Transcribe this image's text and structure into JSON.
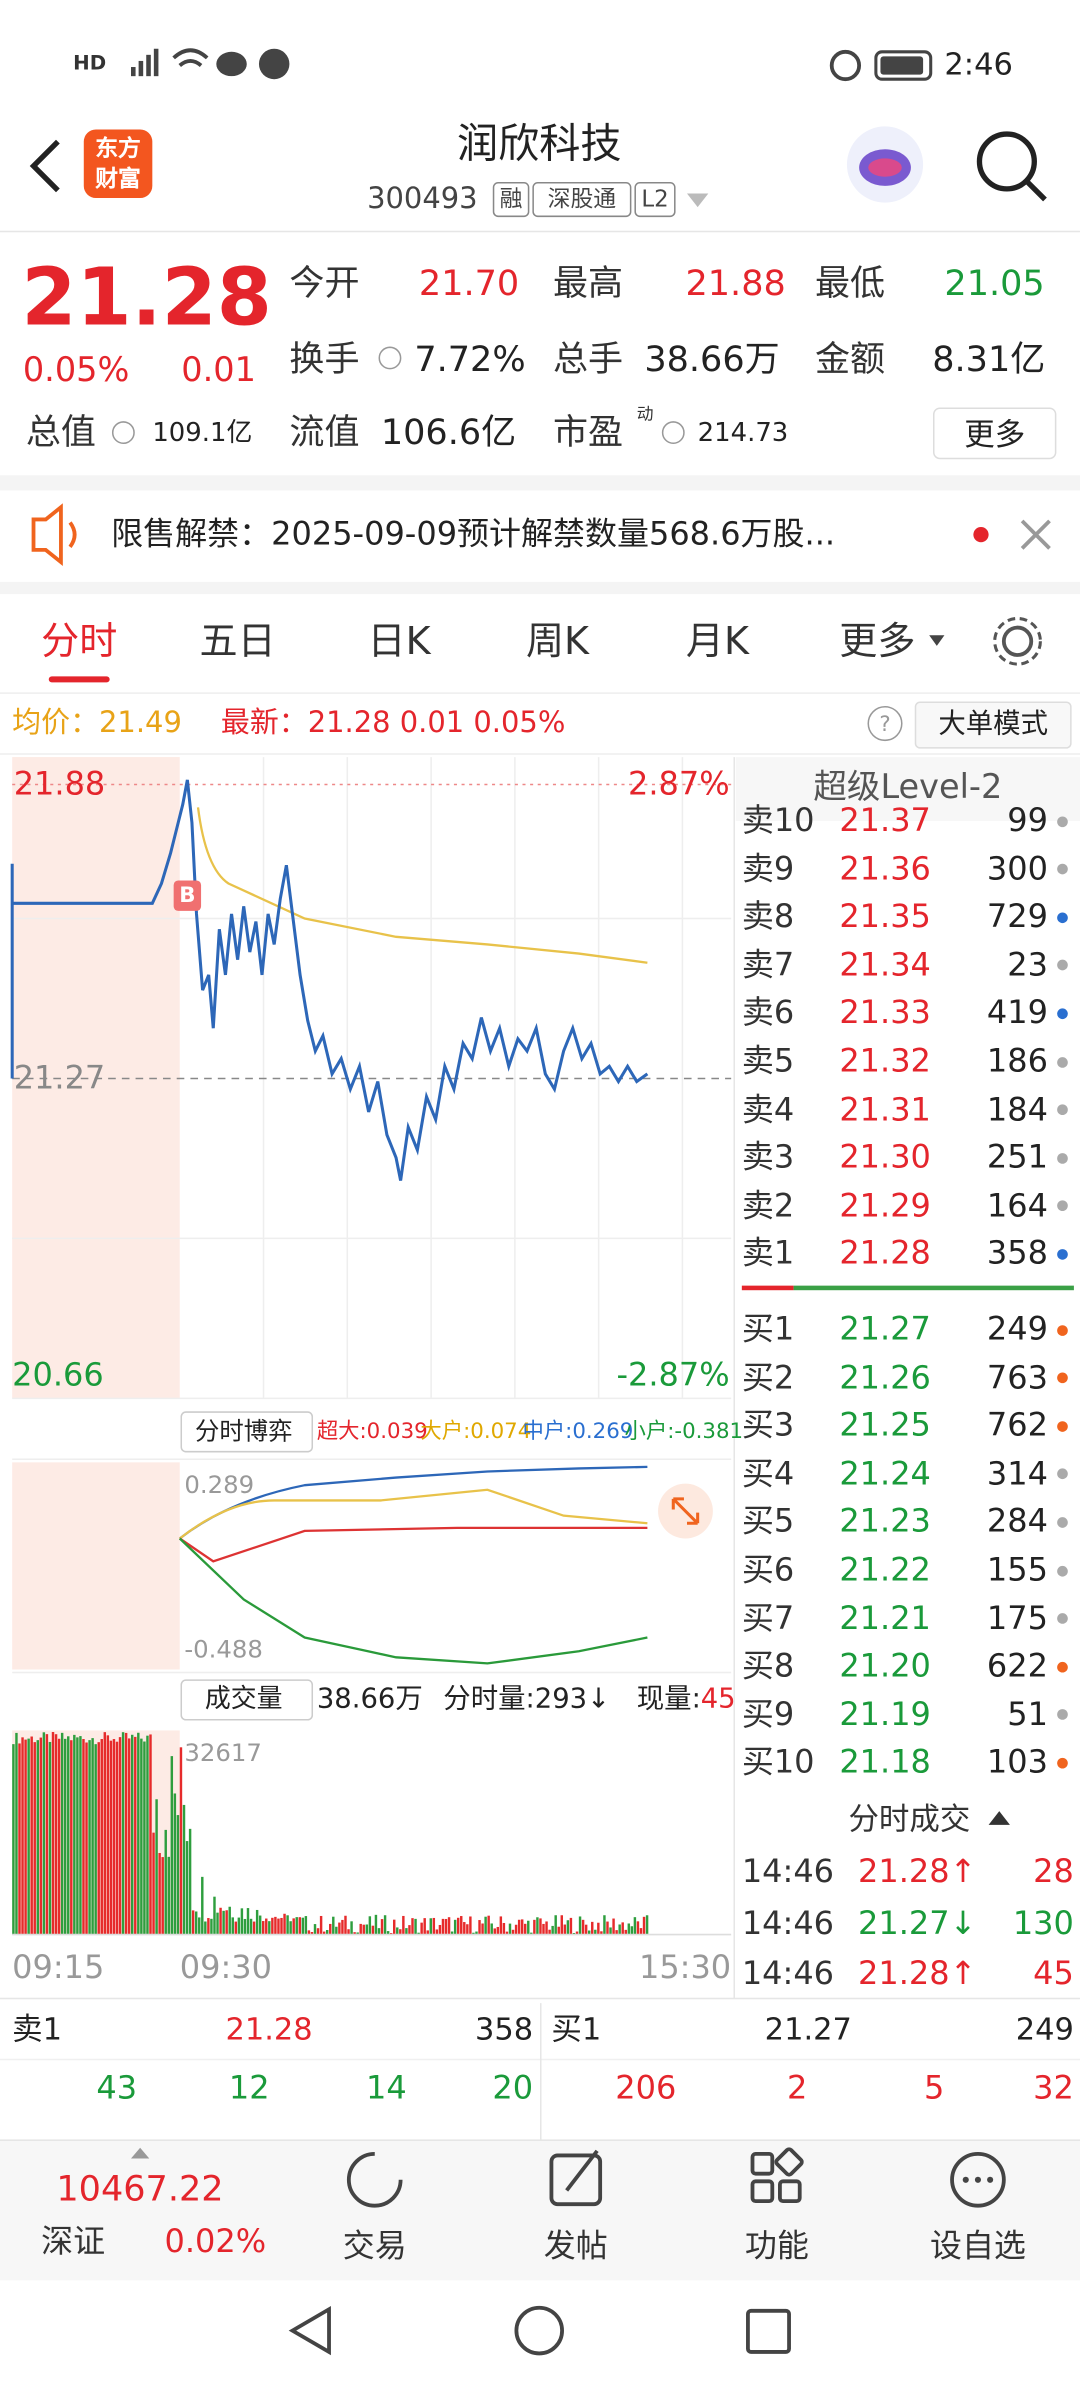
{
  "status_bar": {
    "network": "HD",
    "time": "2:46"
  },
  "header": {
    "logo": [
      "东方",
      "财富"
    ],
    "title": "润欣科技",
    "code": "300493",
    "badges": [
      "融",
      "深股通",
      "L2"
    ]
  },
  "quote": {
    "price": "21.28",
    "change_pct": "0.05%",
    "change": "0.01",
    "open": {
      "label": "今开",
      "value": "21.70"
    },
    "high": {
      "label": "最高",
      "value": "21.88"
    },
    "low": {
      "label": "最低",
      "value": "21.05"
    },
    "turnover": {
      "label": "换手",
      "value": "7.72%"
    },
    "volume": {
      "label": "总手",
      "value": "38.66万"
    },
    "amount": {
      "label": "金额",
      "value": "8.31亿"
    },
    "market_cap": {
      "label": "总值",
      "value": "109.1亿"
    },
    "float_cap": {
      "label": "流值",
      "value": "106.6亿"
    },
    "pe": {
      "label": "市盈",
      "tag": "动",
      "value": "214.73"
    },
    "more": "更多"
  },
  "notice": {
    "text": "限售解禁：2025-09-09预计解禁数量568.6万股..."
  },
  "tabs": [
    "分时",
    "五日",
    "日K",
    "周K",
    "月K",
    "更多"
  ],
  "intraday": {
    "avg": "均价：21.49",
    "latest": "最新：21.28  0.01  0.05%",
    "mode_button": "大单模式",
    "axis_left": [
      "21.88",
      "21.27",
      "20.66"
    ],
    "axis_right": [
      "2.87%",
      "-2.87%"
    ],
    "marker": "B"
  },
  "level2": {
    "title": "超级Level-2",
    "asks": [
      {
        "label": "卖10",
        "price": "21.37",
        "volume": "99",
        "dot": "#aaaaaa"
      },
      {
        "label": "卖9",
        "price": "21.36",
        "volume": "300",
        "dot": "#aaaaaa"
      },
      {
        "label": "卖8",
        "price": "21.35",
        "volume": "729",
        "dot": "#2a6fd0"
      },
      {
        "label": "卖7",
        "price": "21.34",
        "volume": "23",
        "dot": "#aaaaaa"
      },
      {
        "label": "卖6",
        "price": "21.33",
        "volume": "419",
        "dot": "#2a6fd0"
      },
      {
        "label": "卖5",
        "price": "21.32",
        "volume": "186",
        "dot": "#aaaaaa"
      },
      {
        "label": "卖4",
        "price": "21.31",
        "volume": "184",
        "dot": "#aaaaaa"
      },
      {
        "label": "卖3",
        "price": "21.30",
        "volume": "251",
        "dot": "#aaaaaa"
      },
      {
        "label": "卖2",
        "price": "21.29",
        "volume": "164",
        "dot": "#aaaaaa"
      },
      {
        "label": "卖1",
        "price": "21.28",
        "volume": "358",
        "dot": "#2a6fd0"
      }
    ],
    "bids": [
      {
        "label": "买1",
        "price": "21.27",
        "volume": "249",
        "dot": "#f0641e"
      },
      {
        "label": "买2",
        "price": "21.26",
        "volume": "763",
        "dot": "#f0641e"
      },
      {
        "label": "买3",
        "price": "21.25",
        "volume": "762",
        "dot": "#f0641e"
      },
      {
        "label": "买4",
        "price": "21.24",
        "volume": "314",
        "dot": "#aaaaaa"
      },
      {
        "label": "买5",
        "price": "21.23",
        "volume": "284",
        "dot": "#aaaaaa"
      },
      {
        "label": "买6",
        "price": "21.22",
        "volume": "155",
        "dot": "#aaaaaa"
      },
      {
        "label": "买7",
        "price": "21.21",
        "volume": "175",
        "dot": "#aaaaaa"
      },
      {
        "label": "买8",
        "price": "21.20",
        "volume": "622",
        "dot": "#f0641e"
      },
      {
        "label": "买9",
        "price": "21.19",
        "volume": "51",
        "dot": "#aaaaaa"
      },
      {
        "label": "买10",
        "price": "21.18",
        "volume": "103",
        "dot": "#f0641e"
      }
    ]
  },
  "game": {
    "selector": "分时博弈",
    "items": [
      "超大:0.039",
      "大户:0.074",
      "中户:0.269",
      "小户:-0.381"
    ],
    "axis": [
      "0.289",
      "-0.488"
    ]
  },
  "volume": {
    "selector": "成交量",
    "total": "38.66万",
    "minute": "分时量:293↓",
    "current_label": "现量:",
    "current": "45",
    "max": "32617",
    "times": [
      "09:15",
      "09:30",
      "15:30"
    ]
  },
  "ticks": {
    "title": "分时成交",
    "rows": [
      {
        "time": "14:46",
        "price": "21.28↑",
        "volume": "28"
      },
      {
        "time": "14:46",
        "price": "21.27↓",
        "volume": "130"
      },
      {
        "time": "14:46",
        "price": "21.28↑",
        "volume": "45"
      }
    ]
  },
  "book": {
    "ask": {
      "label": "卖1",
      "price": "21.28",
      "volume": "358",
      "orders": [
        "43",
        "12",
        "14",
        "20"
      ]
    },
    "bid": {
      "label": "买1",
      "price": "21.27",
      "volume": "249",
      "orders": [
        "206",
        "2",
        "5",
        "32"
      ]
    }
  },
  "bottom_bar": {
    "index_value": "10467.22",
    "index_name": "深证",
    "index_change": "0.02%",
    "tabs": [
      "交易",
      "发帖",
      "功能",
      "设自选"
    ]
  }
}
